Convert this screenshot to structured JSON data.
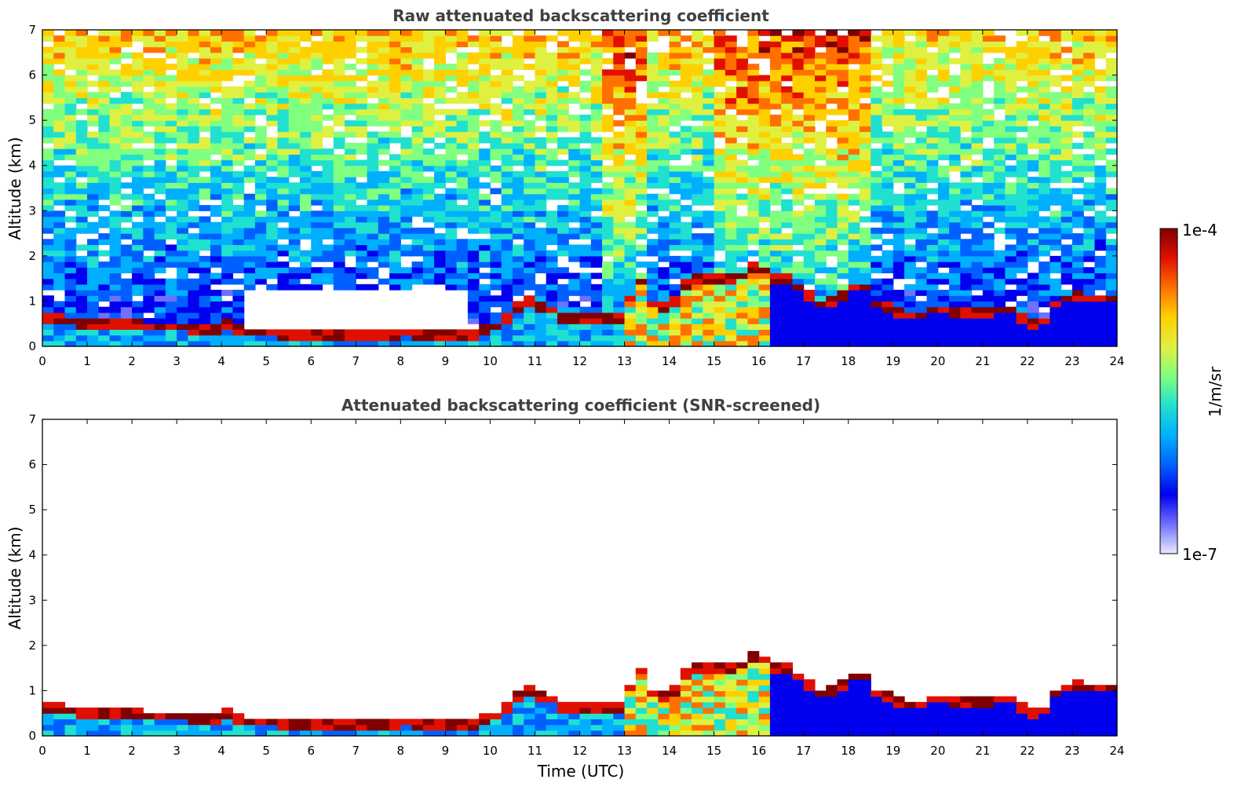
{
  "chart_data": [
    {
      "type": "heatmap",
      "title": "Raw attenuated backscattering coefficient",
      "xlabel": "",
      "ylabel": "Altitude (km)",
      "xlim": [
        0,
        24
      ],
      "ylim": [
        0,
        7
      ],
      "xticks": [
        0,
        1,
        2,
        3,
        4,
        5,
        6,
        7,
        8,
        9,
        10,
        11,
        12,
        13,
        14,
        15,
        16,
        17,
        18,
        19,
        20,
        21,
        22,
        23,
        24
      ],
      "yticks": [
        0,
        1,
        2,
        3,
        4,
        5,
        6,
        7
      ],
      "screened": false
    },
    {
      "type": "heatmap",
      "title": "Attenuated backscattering coefficient (SNR-screened)",
      "xlabel": "Time (UTC)",
      "ylabel": "Altitude (km)",
      "xlim": [
        0,
        24
      ],
      "ylim": [
        0,
        7
      ],
      "xticks": [
        0,
        1,
        2,
        3,
        4,
        5,
        6,
        7,
        8,
        9,
        10,
        11,
        12,
        13,
        14,
        15,
        16,
        17,
        18,
        19,
        20,
        21,
        22,
        23,
        24
      ],
      "yticks": [
        0,
        1,
        2,
        3,
        4,
        5,
        6,
        7
      ],
      "screened": true
    }
  ],
  "colorbar": {
    "label": "1/m/sr",
    "max_label": "1e-4",
    "min_label": "1e-7",
    "range": [
      1e-07,
      0.0001
    ],
    "scale": "log",
    "colormap": [
      "#e8e8ff",
      "#7070ff",
      "#0000ee",
      "#0060ff",
      "#00b0ff",
      "#20e0d0",
      "#80ff80",
      "#e0f040",
      "#ffd000",
      "#ff7000",
      "#e01000",
      "#800000"
    ]
  },
  "boundary_layer_top_km": {
    "t": [
      0,
      0.5,
      1,
      1.5,
      2,
      2.5,
      3,
      3.5,
      4,
      4.2,
      4.5,
      5,
      5.5,
      6,
      6.5,
      7,
      7.5,
      8,
      8.5,
      9,
      9.5,
      10,
      10.3,
      10.6,
      10.8,
      11,
      11.3,
      11.5,
      12,
      12.5,
      13,
      13.3,
      13.6,
      14,
      14.4,
      14.8,
      15.2,
      15.6,
      16,
      16.3,
      16.6,
      17,
      17.3,
      17.6,
      18,
      18.3,
      18.6,
      19,
      19.5,
      20,
      20.5,
      21,
      21.5,
      22,
      22.3,
      22.6,
      23,
      23.5,
      24
    ],
    "z": [
      0.65,
      0.55,
      0.5,
      0.45,
      0.45,
      0.42,
      0.42,
      0.38,
      0.35,
      0.5,
      0.3,
      0.3,
      0.25,
      0.22,
      0.2,
      0.2,
      0.22,
      0.28,
      0.25,
      0.22,
      0.22,
      0.35,
      0.55,
      0.85,
      1.05,
      0.85,
      0.9,
      0.65,
      0.6,
      0.6,
      0.65,
      1.6,
      0.95,
      0.8,
      1.4,
      1.5,
      1.45,
      1.5,
      1.8,
      1.45,
      1.5,
      1.2,
      0.9,
      0.95,
      1.2,
      1.4,
      0.9,
      0.8,
      0.6,
      0.85,
      0.7,
      0.7,
      0.85,
      0.55,
      0.4,
      0.9,
      1.1,
      1.05,
      1.05
    ]
  }
}
